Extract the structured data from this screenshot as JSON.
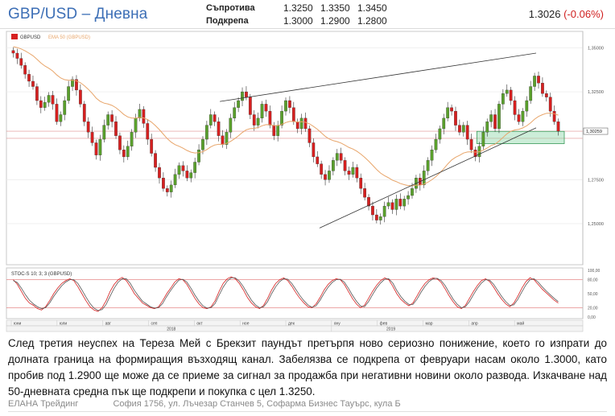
{
  "header": {
    "title": "GBP/USD – Дневна",
    "resistance_label": "Съпротива",
    "support_label": "Подкрепа",
    "resistance_levels": [
      "1.3250",
      "1.3350",
      "1.3450"
    ],
    "support_levels": [
      "1.3000",
      "1.2900",
      "1.2800"
    ],
    "last_price": "1.3026",
    "change": "(-0.06%)"
  },
  "chart_data": [
    {
      "type": "candlestick",
      "symbol_label": "GBPUSD",
      "ema_label": "EMA 50 (GBPUSD)",
      "ylim": [
        1.228,
        1.358
      ],
      "y_ticks": [
        "1,35000",
        "1,32500",
        "1,27500",
        "1,25000"
      ],
      "last_price_label": "1,30259",
      "last_price": 1.30259,
      "months": [
        "юни",
        "юли",
        "авг",
        "сеп",
        "окт",
        "ное",
        "дек",
        "яну",
        "фев",
        "мар",
        "апр",
        "май"
      ],
      "years": [
        "2018",
        "2019"
      ],
      "colors": {
        "up": "#5aa02c",
        "down": "#d62020",
        "ema": "#e8a56a",
        "channel": "#333333",
        "support_zone": "#8fd6a8"
      },
      "horizontal_lines": [
        1.3026,
        1.2985
      ],
      "channel": {
        "lower": [
          [
            0.0,
            1.2475
          ],
          [
            1.0,
            1.3045
          ]
        ],
        "upper": [
          [
            0.38,
            1.3195
          ],
          [
            1.0,
            1.347
          ]
        ]
      },
      "support_zone": {
        "from": 1.2955,
        "to": 1.3025
      },
      "closes": [
        1.347,
        1.344,
        1.34,
        1.335,
        1.331,
        1.328,
        1.32,
        1.316,
        1.319,
        1.323,
        1.318,
        1.308,
        1.312,
        1.32,
        1.328,
        1.332,
        1.326,
        1.318,
        1.308,
        1.302,
        1.296,
        1.289,
        1.298,
        1.306,
        1.312,
        1.308,
        1.3,
        1.292,
        1.288,
        1.294,
        1.302,
        1.31,
        1.315,
        1.307,
        1.298,
        1.29,
        1.282,
        1.276,
        1.27,
        1.268,
        1.272,
        1.278,
        1.283,
        1.28,
        1.276,
        1.279,
        1.285,
        1.292,
        1.298,
        1.306,
        1.312,
        1.308,
        1.3,
        1.295,
        1.302,
        1.31,
        1.316,
        1.32,
        1.325,
        1.322,
        1.312,
        1.306,
        1.31,
        1.318,
        1.314,
        1.306,
        1.3,
        1.306,
        1.314,
        1.32,
        1.316,
        1.308,
        1.304,
        1.31,
        1.304,
        1.296,
        1.288,
        1.284,
        1.278,
        1.275,
        1.28,
        1.286,
        1.29,
        1.286,
        1.28,
        1.278,
        1.282,
        1.276,
        1.27,
        1.265,
        1.26,
        1.255,
        1.252,
        1.254,
        1.26,
        1.262,
        1.258,
        1.264,
        1.26,
        1.264,
        1.266,
        1.27,
        1.276,
        1.272,
        1.28,
        1.286,
        1.292,
        1.298,
        1.304,
        1.31,
        1.316,
        1.314,
        1.306,
        1.302,
        1.306,
        1.298,
        1.292,
        1.288,
        1.294,
        1.302,
        1.308,
        1.312,
        1.304,
        1.318,
        1.324,
        1.326,
        1.32,
        1.312,
        1.308,
        1.314,
        1.32,
        1.328,
        1.334,
        1.33,
        1.324,
        1.322,
        1.314,
        1.308,
        1.3026
      ]
    },
    {
      "type": "line",
      "label": "STOC-S 10; 3; 3 (GBPUSD)",
      "ylim": [
        0,
        100
      ],
      "y_ticks": [
        "100,00",
        "80,00",
        "50,00",
        "20,00",
        "0,00"
      ],
      "levels": [
        80,
        20
      ],
      "series": [
        {
          "values": [
            80,
            70,
            55,
            40,
            30,
            25,
            18,
            15,
            22,
            35,
            50,
            62,
            72,
            78,
            82,
            78,
            65,
            50,
            35,
            22,
            15,
            12,
            20,
            35,
            55,
            70,
            80,
            85,
            78,
            65,
            50,
            40,
            30,
            25,
            20,
            18,
            22,
            35,
            50,
            62,
            75,
            82,
            80,
            70,
            55,
            40,
            28,
            20,
            18,
            22,
            35,
            55,
            72,
            82,
            86,
            82,
            72,
            58,
            42,
            30,
            22,
            18,
            25,
            40,
            58,
            72,
            80,
            84,
            78,
            66,
            52,
            40,
            30,
            22,
            20,
            28,
            42,
            58,
            70,
            78,
            82,
            80,
            70,
            55,
            40,
            28,
            20,
            25,
            40,
            55,
            68,
            78,
            84,
            80,
            66,
            50,
            38,
            30,
            24,
            30,
            45,
            60,
            72,
            80,
            84,
            82,
            74,
            60,
            45,
            32,
            22,
            18,
            25,
            40,
            55,
            68,
            78,
            82,
            76,
            64,
            50,
            38,
            28,
            22,
            30,
            45,
            62,
            76,
            84,
            80,
            70,
            60,
            52,
            44,
            36,
            30
          ]
        },
        {
          "values": [
            78,
            74,
            62,
            48,
            36,
            28,
            22,
            18,
            20,
            30,
            44,
            56,
            67,
            75,
            80,
            80,
            72,
            58,
            43,
            29,
            19,
            14,
            16,
            27,
            45,
            62,
            75,
            82,
            82,
            72,
            57,
            45,
            34,
            28,
            22,
            19,
            20,
            29,
            44,
            57,
            69,
            79,
            81,
            75,
            62,
            47,
            34,
            24,
            19,
            20,
            29,
            47,
            64,
            77,
            84,
            84,
            77,
            65,
            50,
            36,
            26,
            20,
            22,
            33,
            50,
            65,
            76,
            82,
            81,
            72,
            59,
            46,
            35,
            26,
            21,
            24,
            36,
            51,
            64,
            74,
            80,
            81,
            75,
            62,
            47,
            34,
            24,
            22,
            33,
            48,
            62,
            73,
            81,
            82,
            73,
            57,
            44,
            34,
            27,
            27,
            38,
            53,
            66,
            76,
            82,
            83,
            78,
            67,
            52,
            38,
            27,
            20,
            22,
            33,
            48,
            62,
            73,
            80,
            79,
            70,
            57,
            44,
            33,
            25,
            26,
            38,
            54,
            69,
            80,
            82,
            75,
            65,
            56,
            48,
            40,
            33
          ]
        }
      ]
    }
  ],
  "description": "След третия неуспех на Тереза Мей с Брекзит паундът претърпя ново сериозно понижение, което го изпрати до долната граница на формиращия възходящ канал. Забелязва се подкрепа от февруари насам около 1.3000, като пробив под 1.2900 ще може да се приеме за сигнал за продажба при негативни новини около развода. Изкачване над 50-дневната средна пък ще подкрепи и покупка с цел 1.3250.",
  "footer": {
    "company": "ЕЛАНА Трейдинг",
    "address": "София 1756, ул. Лъчезар Станчев 5, Софарма Бизнес Тауърс, кула Б"
  }
}
